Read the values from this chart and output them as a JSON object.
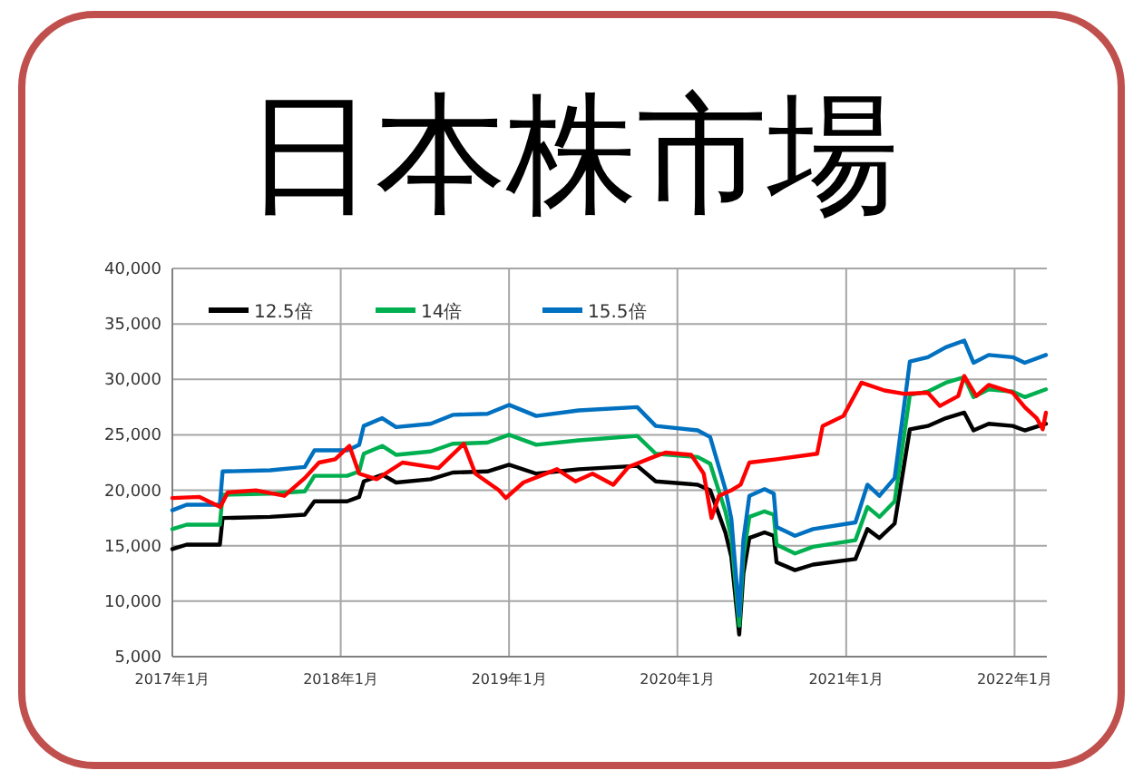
{
  "chart_data": {
    "type": "line",
    "title": "日本株市場",
    "xlim": [
      "2017-01-01",
      "2022-03-12"
    ],
    "xticks": [
      {
        "value": "2017-01-01",
        "label": "2017年1月"
      },
      {
        "value": "2018-01-01",
        "label": "2018年1月"
      },
      {
        "value": "2019-01-01",
        "label": "2019年1月"
      },
      {
        "value": "2020-01-01",
        "label": "2020年1月"
      },
      {
        "value": "2021-01-01",
        "label": "2021年1月"
      },
      {
        "value": "2022-01-01",
        "label": "2022年1月"
      }
    ],
    "ylim": [
      5000,
      40000
    ],
    "yticks": [
      {
        "value": 5000,
        "label": "5,000"
      },
      {
        "value": 10000,
        "label": "10,000"
      },
      {
        "value": 15000,
        "label": "15,000"
      },
      {
        "value": 20000,
        "label": "20,000"
      },
      {
        "value": 25000,
        "label": "25,000"
      },
      {
        "value": 30000,
        "label": "30,000"
      },
      {
        "value": 35000,
        "label": "35,000"
      },
      {
        "value": 40000,
        "label": "40,000"
      }
    ],
    "grid": true,
    "legend": "top left",
    "marker": "none",
    "line_style": "solid",
    "x": [
      "2017-01-01",
      "2017-02-01",
      "2017-04-14",
      "2017-04-20",
      "2017-08-01",
      "2017-10-15",
      "2017-11-05",
      "2018-01-15",
      "2018-02-10",
      "2018-02-20",
      "2018-04-01",
      "2018-05-01",
      "2018-07-15",
      "2018-09-01",
      "2018-11-15",
      "2019-01-01",
      "2019-03-01",
      "2019-06-01",
      "2019-10-06",
      "2019-11-15",
      "2020-02-14",
      "2020-03-12",
      "2020-04-14",
      "2020-04-27",
      "2020-05-14",
      "2020-05-23",
      "2020-06-05",
      "2020-07-08",
      "2020-07-28",
      "2020-08-03",
      "2020-09-12",
      "2020-10-21",
      "2021-01-21",
      "2021-02-16",
      "2021-03-14",
      "2021-04-16",
      "2021-05-19",
      "2021-06-27",
      "2021-08-05",
      "2021-09-14",
      "2021-10-04",
      "2021-11-06",
      "2021-12-28",
      "2022-01-23",
      "2022-03-10"
    ],
    "series": [
      {
        "name": "12.5倍",
        "color": "#000000",
        "values": [
          14700,
          15100,
          15100,
          17500,
          17600,
          17800,
          19000,
          19000,
          19400,
          20800,
          21400,
          20700,
          21000,
          21600,
          21700,
          22300,
          21500,
          21900,
          22200,
          20800,
          20500,
          20000,
          16200,
          14000,
          7000,
          12500,
          15700,
          16200,
          15900,
          13500,
          12800,
          13300,
          13800,
          16500,
          15700,
          17000,
          25500,
          25800,
          26500,
          27000,
          25400,
          26000,
          25800,
          25400,
          26000
        ]
      },
      {
        "name": "14倍",
        "color": "#00b050",
        "values": [
          16500,
          16900,
          16900,
          19600,
          19700,
          19900,
          21300,
          21300,
          21700,
          23300,
          24000,
          23200,
          23500,
          24200,
          24300,
          25000,
          24100,
          24500,
          24900,
          23300,
          23000,
          22400,
          18100,
          15700,
          7800,
          14000,
          17600,
          18100,
          17800,
          15100,
          14300,
          14900,
          15500,
          18500,
          17600,
          19000,
          28600,
          28900,
          29700,
          30200,
          28400,
          29100,
          28900,
          28400,
          29100
        ]
      },
      {
        "name": "15.5倍",
        "color": "#0070c0",
        "values": [
          18200,
          18700,
          18700,
          21700,
          21800,
          22100,
          23600,
          23600,
          24100,
          25800,
          26500,
          25700,
          26000,
          26800,
          26900,
          27700,
          26700,
          27200,
          27500,
          25800,
          25400,
          24800,
          20100,
          17400,
          8700,
          15500,
          19500,
          20100,
          19700,
          16700,
          15900,
          16500,
          17100,
          20500,
          19500,
          21100,
          31600,
          32000,
          32900,
          33500,
          31500,
          32200,
          32000,
          31500,
          32200
        ]
      },
      {
        "color": "#ff0000",
        "x": [
          "2017-01-01",
          "2017-03-01",
          "2017-04-15",
          "2017-05-01",
          "2017-07-01",
          "2017-09-01",
          "2017-10-15",
          "2017-11-15",
          "2017-12-20",
          "2018-01-20",
          "2018-02-10",
          "2018-03-20",
          "2018-05-15",
          "2018-08-01",
          "2018-09-25",
          "2018-10-20",
          "2018-12-10",
          "2018-12-25",
          "2019-02-01",
          "2019-04-15",
          "2019-05-25",
          "2019-07-01",
          "2019-08-15",
          "2019-09-17",
          "2019-11-10",
          "2019-12-06",
          "2020-01-31",
          "2020-02-27",
          "2020-03-15",
          "2020-03-31",
          "2020-04-27",
          "2020-05-17",
          "2020-06-05",
          "2020-08-03",
          "2020-10-30",
          "2020-11-11",
          "2020-12-26",
          "2021-02-03",
          "2021-03-25",
          "2021-05-06",
          "2021-06-27",
          "2021-07-23",
          "2021-09-01",
          "2021-09-14",
          "2021-10-10",
          "2021-11-06",
          "2021-12-28",
          "2022-01-23",
          "2022-02-18",
          "2022-03-03",
          "2022-03-10"
        ],
        "values": [
          19300,
          19400,
          18500,
          19800,
          20000,
          19500,
          21100,
          22500,
          22800,
          24000,
          21500,
          21000,
          22500,
          22000,
          24200,
          21500,
          20000,
          19300,
          20700,
          21900,
          20800,
          21500,
          20500,
          22100,
          23000,
          23400,
          23200,
          21500,
          17500,
          19500,
          20000,
          20500,
          22500,
          22800,
          23300,
          25800,
          26700,
          29700,
          29000,
          28700,
          28800,
          27600,
          28500,
          30300,
          28500,
          29500,
          28800,
          27500,
          26500,
          25500,
          27000
        ]
      }
    ]
  }
}
